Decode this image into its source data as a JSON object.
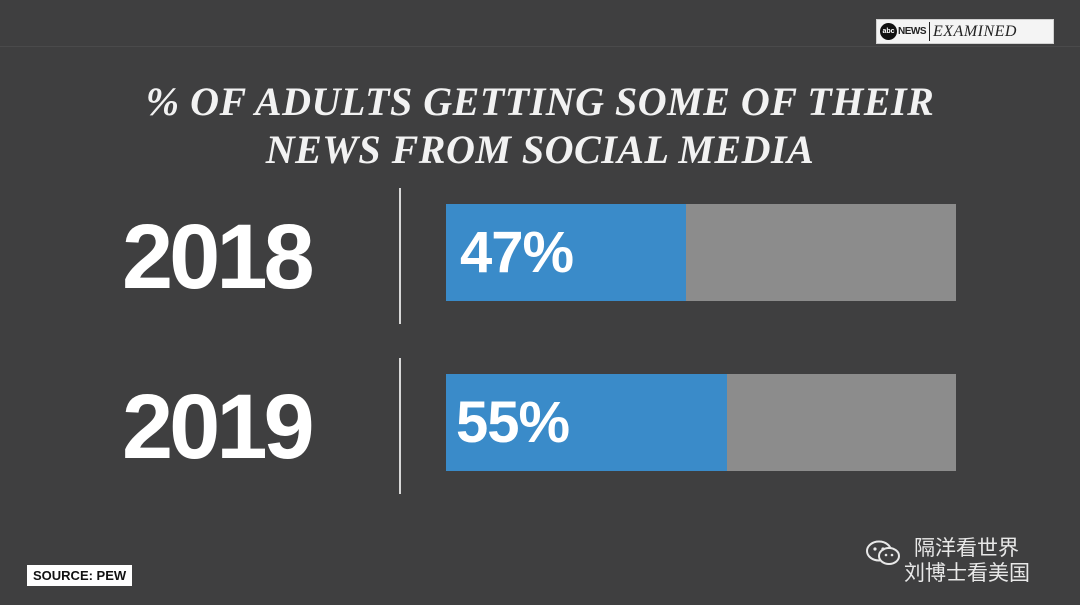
{
  "logo": {
    "abc": "abc",
    "news": "NEWS",
    "examined": "EXAMINED"
  },
  "source": "SOURCE: PEW",
  "watermark": {
    "line1": "隔洋看世界",
    "line2": "刘博士看美国",
    "icon": "wechat-icon"
  },
  "colors": {
    "background": "#3f3f40",
    "bar_fill": "#3a8bc9",
    "bar_track": "#8c8c8c"
  },
  "chart_data": {
    "type": "bar",
    "title_lines": [
      "% OF ADULTS GETTING SOME OF THEIR",
      "NEWS FROM SOCIAL MEDIA"
    ],
    "categories": [
      "2018",
      "2019"
    ],
    "values": [
      47,
      55
    ],
    "labels": [
      "47%",
      "55%"
    ],
    "ylim": [
      0,
      100
    ]
  }
}
